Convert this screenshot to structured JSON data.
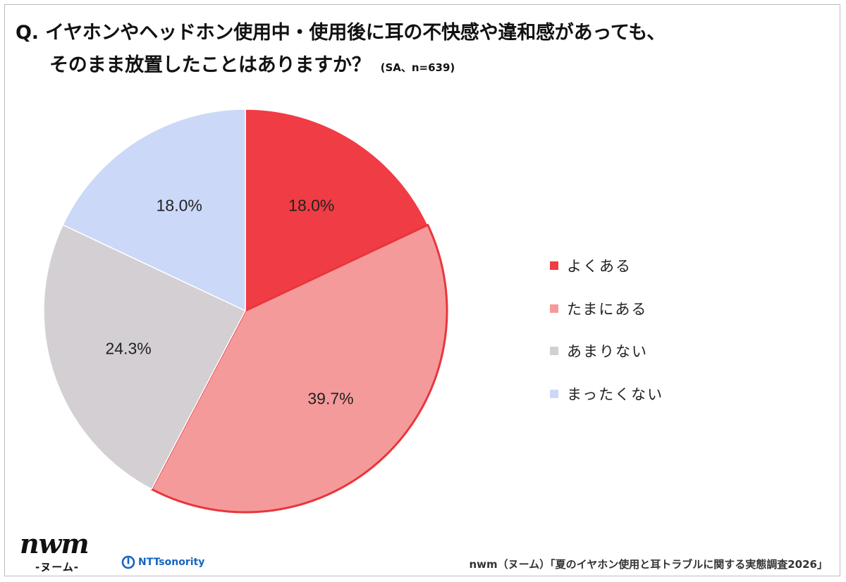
{
  "title": {
    "line1": "Q. イヤホンやヘッドホン使用中・使用後に耳の不快感や違和感があっても、",
    "line2": "そのまま放置したことはありますか？",
    "note": "(SA、n=639)"
  },
  "chart_data": {
    "type": "pie",
    "categories": [
      "よくある",
      "たまにある",
      "あまりない",
      "まったくない"
    ],
    "values": [
      18.0,
      39.7,
      24.3,
      18.0
    ],
    "data_labels": [
      "18.0%",
      "39.7%",
      "24.3%",
      "18.0%"
    ],
    "colors": [
      "#f03c44",
      "#f59a9b",
      "#d3cfd3",
      "#cbd8f8"
    ],
    "highlight_stroke": "#e8363c",
    "legend_position": "right",
    "start": "12 o'clock",
    "direction": "clockwise"
  },
  "footer": {
    "logo": "nwm",
    "logo_sub": "-ヌーム-",
    "partner": "NTTsonority",
    "source": "nwm（ヌーム）「夏のイヤホン使用と耳トラブルに関する実態調査2026」"
  }
}
